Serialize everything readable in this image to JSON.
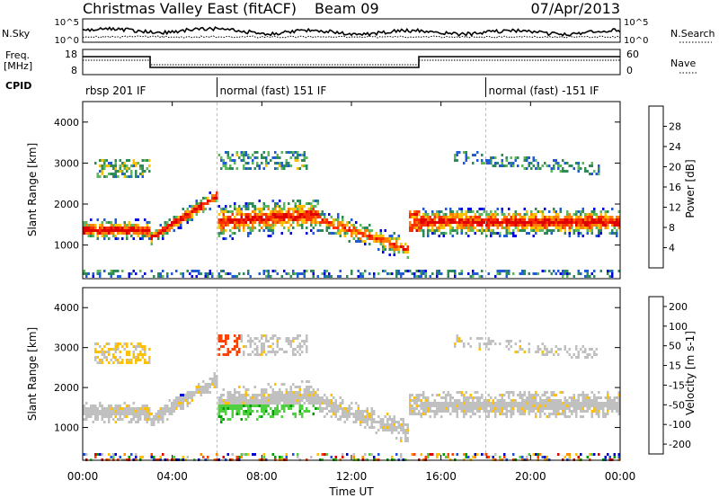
{
  "header": {
    "title": "Christmas Valley East (fitACF)",
    "beam": "Beam 09",
    "date": "07/Apr/2013"
  },
  "panels": {
    "nsky_label": "N.Sky",
    "nsearch_label": "N.Search",
    "freq_label_1": "Freq.",
    "freq_label_2": "[MHz]",
    "nave_label": "Nave",
    "cpid_label": "CPID",
    "nsky_ticks": [
      "10^5",
      "10^0"
    ],
    "nsearch_ticks": [
      "10^5",
      "10^0"
    ],
    "freq_ticks": [
      "18",
      "8"
    ],
    "nave_ticks": [
      "60",
      "0"
    ]
  },
  "cpid_segments": [
    {
      "label": "rbsp 201 IF",
      "start_hour": 0
    },
    {
      "label": "normal (fast) 151 IF",
      "start_hour": 6
    },
    {
      "label": "normal (fast) -151 IF",
      "start_hour": 18
    }
  ],
  "colors": {
    "power_scale": [
      "#0000e0",
      "#1f5bd6",
      "#2e8b57",
      "#5cb85c",
      "#ffc000",
      "#ff8000",
      "#ff3000",
      "#e00000"
    ],
    "velocity_scale": [
      "#0000d0",
      "#2050e0",
      "#00a000",
      "#50d040",
      "#c0c0c0",
      "#ffc000",
      "#ff8c00",
      "#ff4000",
      "#e00000"
    ]
  },
  "chart_data": [
    {
      "type": "heatmap",
      "title": "Power",
      "ylabel": "Slant Range [km]",
      "ylim": [
        180,
        4500
      ],
      "yticks": [
        1000,
        2000,
        3000,
        4000
      ],
      "xlim_hours": [
        0,
        24
      ],
      "colorbar_label": "Power [dB]",
      "colorbar_ticks": [
        "4",
        "8",
        "12",
        "16",
        "20",
        "24",
        "28"
      ],
      "colorbar_range": [
        0,
        32
      ]
    },
    {
      "type": "heatmap",
      "title": "Velocity",
      "ylabel": "Slant Range [km]",
      "ylim": [
        180,
        4500
      ],
      "yticks": [
        1000,
        2000,
        3000,
        4000
      ],
      "xlim_hours": [
        0,
        24
      ],
      "xlabel": "Time UT",
      "xticks": [
        "00:00",
        "04:00",
        "08:00",
        "12:00",
        "16:00",
        "20:00",
        "00:00"
      ],
      "colorbar_label": "Velocity [m s-1]",
      "colorbar_ticks": [
        "200",
        "100",
        "50",
        "15",
        "-15",
        "-50",
        "-100",
        "-200"
      ]
    }
  ]
}
